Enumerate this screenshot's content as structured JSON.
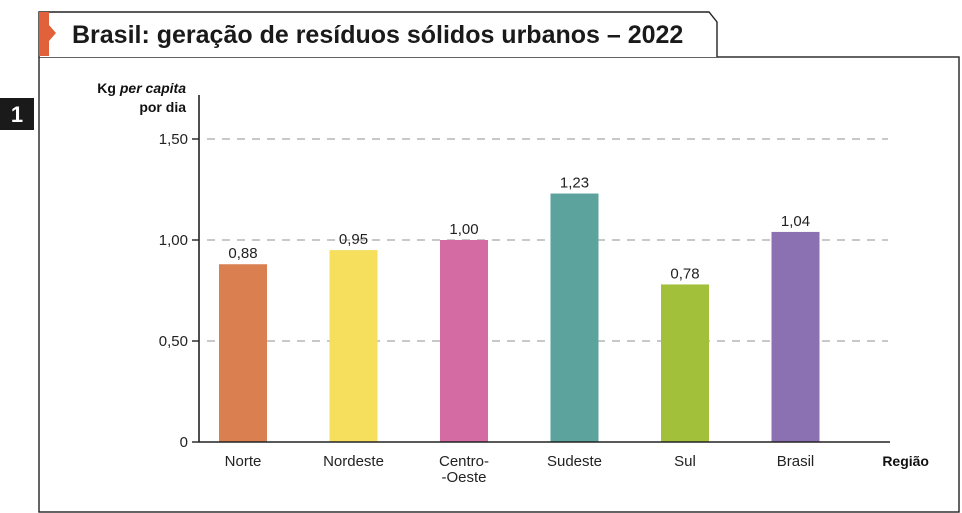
{
  "figure_number": "1",
  "colors": {
    "accent_orange": "#e0613a",
    "badge_dark": "#1a1a1a",
    "grid": "#c8c8c8"
  },
  "chart_data": {
    "type": "bar",
    "title": "Brasil: geração de resíduos sólidos urbanos – 2022",
    "ylabel_parts": [
      "Kg ",
      "per capita",
      "por dia"
    ],
    "xlabel": "Região",
    "ylim": [
      0,
      1.5
    ],
    "yticks": [
      0,
      0.5,
      1.0,
      1.5
    ],
    "ytick_labels": [
      "0",
      "0,50",
      "1,00",
      "1,50"
    ],
    "grid": "horizontal dashed",
    "categories": [
      {
        "label_lines": [
          "Norte"
        ],
        "value": 0.88,
        "value_label": "0,88",
        "color": "#d97f50"
      },
      {
        "label_lines": [
          "Nordeste"
        ],
        "value": 0.95,
        "value_label": "0,95",
        "color": "#f7df5e"
      },
      {
        "label_lines": [
          "Centro-",
          "-Oeste"
        ],
        "value": 1.0,
        "value_label": "1,00",
        "color": "#d46ba2"
      },
      {
        "label_lines": [
          "Sudeste"
        ],
        "value": 1.23,
        "value_label": "1,23",
        "color": "#5ba39c"
      },
      {
        "label_lines": [
          "Sul"
        ],
        "value": 0.78,
        "value_label": "0,78",
        "color": "#a3c03a"
      },
      {
        "label_lines": [
          "Brasil"
        ],
        "value": 1.04,
        "value_label": "1,04",
        "color": "#8b71b1"
      }
    ]
  }
}
